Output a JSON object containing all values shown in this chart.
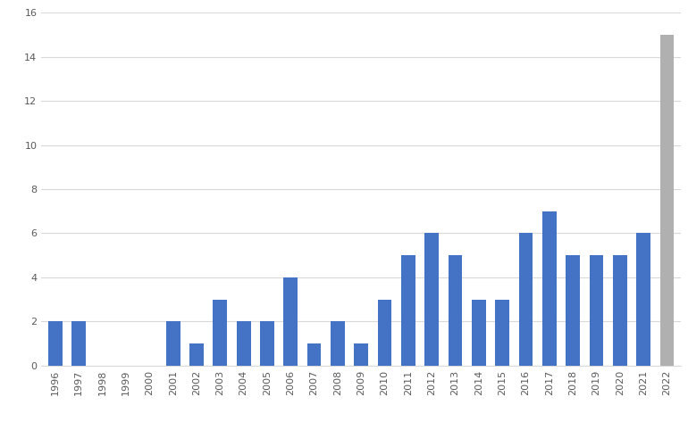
{
  "years": [
    1996,
    1997,
    1998,
    1999,
    2000,
    2001,
    2002,
    2003,
    2004,
    2005,
    2006,
    2007,
    2008,
    2009,
    2010,
    2011,
    2012,
    2013,
    2014,
    2015,
    2016,
    2017,
    2018,
    2019,
    2020,
    2021,
    2022
  ],
  "values": [
    2,
    2,
    0,
    0,
    0,
    2,
    1,
    3,
    2,
    2,
    4,
    1,
    2,
    1,
    3,
    5,
    6,
    5,
    3,
    3,
    6,
    7,
    5,
    5,
    5,
    6,
    15
  ],
  "bar_colors": [
    "#4472c4",
    "#4472c4",
    "#4472c4",
    "#4472c4",
    "#4472c4",
    "#4472c4",
    "#4472c4",
    "#4472c4",
    "#4472c4",
    "#4472c4",
    "#4472c4",
    "#4472c4",
    "#4472c4",
    "#4472c4",
    "#4472c4",
    "#4472c4",
    "#4472c4",
    "#4472c4",
    "#4472c4",
    "#4472c4",
    "#4472c4",
    "#4472c4",
    "#4472c4",
    "#4472c4",
    "#4472c4",
    "#4472c4",
    "#b0b0b0"
  ],
  "ylim": [
    0,
    16
  ],
  "yticks": [
    0,
    2,
    4,
    6,
    8,
    10,
    12,
    14,
    16
  ],
  "background_color": "#ffffff",
  "grid_color": "#d9d9d9",
  "tick_label_color": "#595959",
  "tick_fontsize": 8.0,
  "bar_width": 0.6
}
